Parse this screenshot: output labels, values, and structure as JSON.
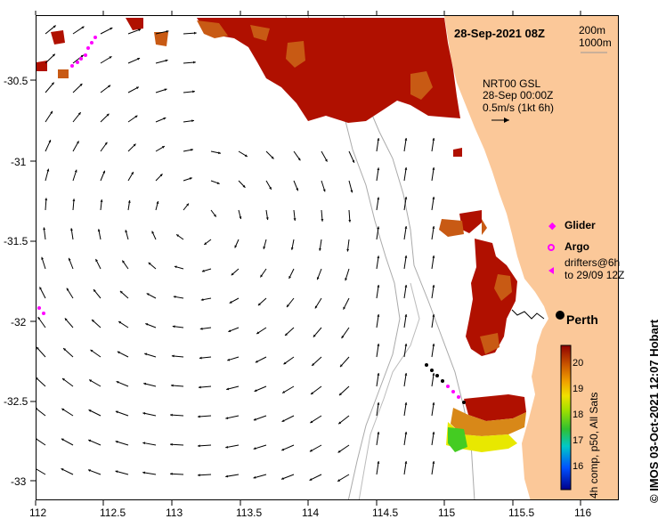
{
  "map": {
    "date_label": "28-Sep-2021 08Z",
    "isobath_labels": [
      "200m",
      "1000m"
    ],
    "current_source": "NRT00 GSL",
    "current_time": "28-Sep 00:00Z",
    "vector_scale": "0.5m/s (1kt 6h)",
    "city_label": "Perth",
    "lon_ticks": [
      "112",
      "112.5",
      "113",
      "113.5",
      "114",
      "114.5",
      "115",
      "115.5",
      "116"
    ],
    "lat_ticks": [
      "-30.5",
      "-31",
      "-31.5",
      "-32",
      "-32.5",
      "-33"
    ],
    "legend": {
      "glider": "Glider",
      "argo": "Argo",
      "drifters_line1": "drifters@6h",
      "drifters_line2": "to 29/09 12Z"
    },
    "colorbar": {
      "ticks": [
        "20",
        "19",
        "18",
        "17",
        "16"
      ],
      "label": "4h comp, p50, All Sats"
    },
    "credit": "© IMOS 03-Oct-2021 12:07 Hobart",
    "colors": {
      "land": "#fbc899",
      "sst_warm": "#b01000",
      "sst_mid": "#c85a14",
      "sst_yellow": "#e8e800",
      "sst_green": "#44cc22",
      "glider": "#ff00ff",
      "isobath": "#aaaaaa"
    }
  }
}
